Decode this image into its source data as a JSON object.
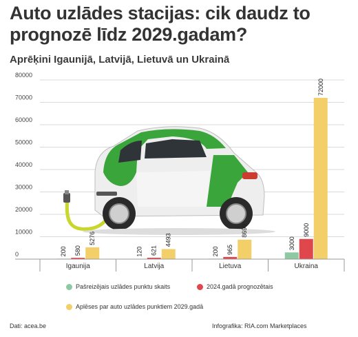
{
  "title": "Auto uzlādes stacijas: cik daudz to prognozē līdz 2029.gadam?",
  "subtitle": "Aprēķini Igaunijā, Latvijā, Lietuvā un Ukrainā",
  "chart_data": {
    "type": "bar",
    "categories": [
      "Igaunija",
      "Latvija",
      "Lietuva",
      "Ukraina"
    ],
    "series": [
      {
        "name": "Pašreizējais uzlādes punktu skaits",
        "color": "#8fc9a3",
        "values": [
          200,
          120,
          200,
          3000
        ],
        "labels": [
          "200",
          "120",
          "200",
          "3000"
        ]
      },
      {
        "name": "2024.gadā prognozētais",
        "color": "#e0474c",
        "values": [
          580,
          621,
          965,
          9000
        ],
        "labels": [
          "580",
          "621",
          "965",
          "9000"
        ]
      },
      {
        "name": "Aplēses par auto uzlādes punktiem 2029.gadā",
        "color": "#f3cf6a",
        "values": [
          5276,
          4493,
          8699,
          72000
        ],
        "labels": [
          "5276",
          "4493",
          "8699",
          "72000"
        ]
      }
    ],
    "y_ticks": [
      "0",
      "10000",
      "20000",
      "30000",
      "40000",
      "50000",
      "60000",
      "70000",
      "80000"
    ],
    "ylim": [
      0,
      80000
    ],
    "grid": true,
    "legend_position": "bottom"
  },
  "footer": {
    "source": "Dati: acea.be",
    "credit": "Infografika: RIA.com Marketplaces"
  }
}
